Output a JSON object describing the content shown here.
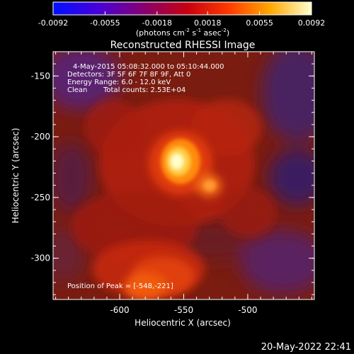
{
  "colorbar": {
    "ticks": [
      "-0.0092",
      "-0.0055",
      "-0.0018",
      "0.0018",
      "0.0055",
      "0.0092"
    ],
    "tick_values": [
      -0.0092,
      -0.0055,
      -0.0018,
      0.0018,
      0.0055,
      0.0092
    ],
    "range": [
      -0.0092,
      0.0092
    ],
    "units_prefix": "(photons cm",
    "units_sup1": "-2",
    "units_mid": " s",
    "units_sup2": "-1",
    "units_mid2": " asec",
    "units_sup3": "-2",
    "units_suffix": ")",
    "colors": [
      "#0010ff",
      "#5a00c8",
      "#9a0040",
      "#e01000",
      "#ff6a00",
      "#ffd000",
      "#ffffc0"
    ]
  },
  "title": "Reconstructed RHESSI Image",
  "info": {
    "line1": "4-May-2015 05:08:32.000 to 05:10:44.000",
    "line2": "Detectors: 3F 5F 6F 7F 8F 9F, Att 0",
    "line3": "Energy Range: 6.0 - 12.0 keV",
    "line4_left": "Clean",
    "line4_right": "Total counts: 2.53E+04"
  },
  "peak_label": "Position of Peak = [-548,-221]",
  "peak": {
    "x": -548,
    "y": -221
  },
  "axes": {
    "xlabel": "Heliocentric X (arcsec)",
    "ylabel": "Heliocentric Y (arcsec)",
    "xlim": [
      -652,
      -448
    ],
    "ylim": [
      -334,
      -130
    ],
    "xticks": [
      "-600",
      "-550",
      "-500"
    ],
    "xtick_values": [
      -600,
      -550,
      -500
    ],
    "yticks": [
      "-150",
      "-200",
      "-250",
      "-300"
    ],
    "ytick_values": [
      -150,
      -200,
      -250,
      -300
    ]
  },
  "timestamp": "20-May-2022 22:41"
}
